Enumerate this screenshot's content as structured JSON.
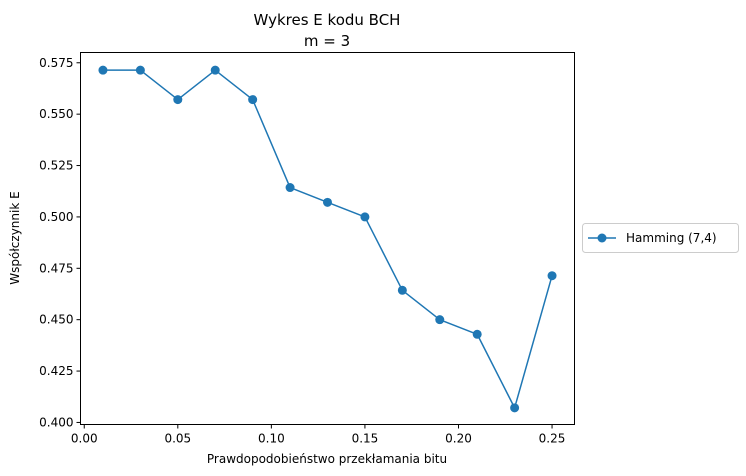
{
  "chart_data": {
    "type": "line",
    "title": "Wykres E kodu BCH",
    "subtitle": "m = 3",
    "xlabel": "Prawdopodobieństwo przekłamania bitu",
    "ylabel": "Współczynnik E",
    "xlim": [
      -0.002,
      0.262
    ],
    "ylim": [
      0.399,
      0.58
    ],
    "xticks": [
      0.0,
      0.05,
      0.1,
      0.15,
      0.2,
      0.25
    ],
    "xtick_labels": [
      "0.00",
      "0.05",
      "0.10",
      "0.15",
      "0.20",
      "0.25"
    ],
    "yticks": [
      0.4,
      0.425,
      0.45,
      0.475,
      0.5,
      0.525,
      0.55,
      0.575
    ],
    "ytick_labels": [
      "0.400",
      "0.425",
      "0.450",
      "0.475",
      "0.500",
      "0.525",
      "0.550",
      "0.575"
    ],
    "grid": false,
    "legend_position": "outside-right",
    "series": [
      {
        "name": "Hamming (7,4)",
        "color": "#1f77b4",
        "marker": "circle",
        "x": [
          0.01,
          0.03,
          0.05,
          0.07,
          0.09,
          0.11,
          0.13,
          0.15,
          0.17,
          0.19,
          0.21,
          0.23,
          0.25
        ],
        "y": [
          0.5714,
          0.5714,
          0.5571,
          0.5714,
          0.5571,
          0.5143,
          0.5071,
          0.5,
          0.4643,
          0.45,
          0.4429,
          0.4071,
          0.4714
        ]
      }
    ]
  }
}
